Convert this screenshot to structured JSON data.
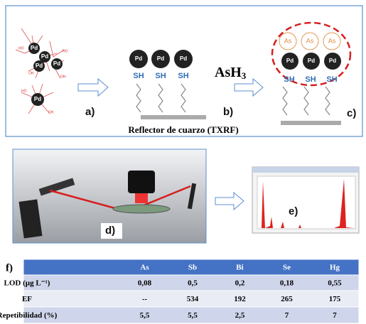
{
  "scheme": {
    "molecule_labels": {
      "pd": "Pd",
      "sh": "SH",
      "as": "As",
      "ho": "HO",
      "oh": "OH"
    },
    "reagent": "AsH3",
    "reagent_main": "AsH",
    "reagent_sub": "3",
    "steps": [
      "a)",
      "b)",
      "c)"
    ],
    "caption": "Reflector de cuarzo (TXRF)"
  },
  "instrument": {
    "photo_label": "d)",
    "spectrum_label": "e)"
  },
  "table": {
    "label": "f)",
    "header": [
      "",
      "As",
      "Sb",
      "Bi",
      "Se",
      "Hg"
    ],
    "rows": [
      [
        "LOD (µg L⁻¹)",
        "0,08",
        "0,5",
        "0,2",
        "0,18",
        "0,55"
      ],
      [
        "EF",
        "--",
        "534",
        "192",
        "265",
        "175"
      ],
      [
        "Repetibilidad (%)",
        "5,5",
        "5,5",
        "2,5",
        "7",
        "7"
      ]
    ]
  }
}
